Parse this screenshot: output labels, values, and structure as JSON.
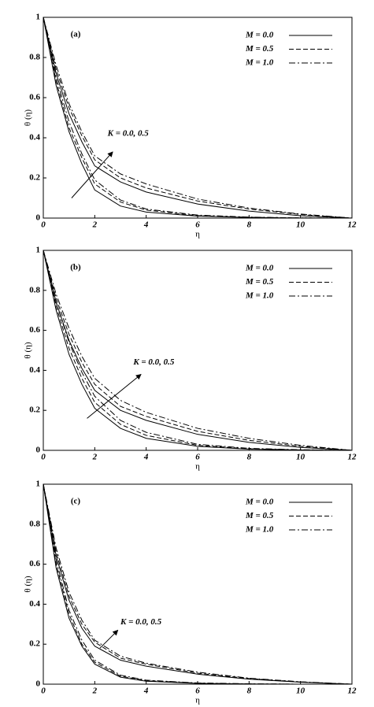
{
  "chart_data": [
    {
      "type": "line",
      "label": "(a)",
      "xlabel": "η",
      "ylabel": "θ (η)",
      "annotation": "K = 0.0, 0.5",
      "xlim": [
        0,
        12
      ],
      "ylim": [
        0,
        1
      ],
      "xticks": [
        0,
        2,
        4,
        6,
        8,
        10,
        12
      ],
      "yticks": [
        0,
        0.2,
        0.4,
        0.6,
        0.8,
        1
      ],
      "x": [
        0,
        0.5,
        1,
        1.5,
        2,
        3,
        4,
        6,
        8,
        10,
        12
      ],
      "series": [
        {
          "name": "M = 0.0",
          "color": "#000000",
          "dash": "solid",
          "lines": [
            {
              "values": [
                1,
                0.66,
                0.43,
                0.27,
                0.14,
                0.06,
                0.03,
                0.01,
                0.003,
                0,
                0
              ]
            },
            {
              "values": [
                1,
                0.72,
                0.52,
                0.38,
                0.26,
                0.18,
                0.13,
                0.07,
                0.035,
                0.012,
                0
              ]
            }
          ]
        },
        {
          "name": "M = 0.5",
          "color": "#000000",
          "dash": "dashed",
          "lines": [
            {
              "values": [
                1,
                0.68,
                0.45,
                0.3,
                0.17,
                0.08,
                0.04,
                0.012,
                0.004,
                0.001,
                0
              ]
            },
            {
              "values": [
                1,
                0.74,
                0.55,
                0.41,
                0.29,
                0.2,
                0.15,
                0.085,
                0.045,
                0.018,
                0
              ]
            }
          ]
        },
        {
          "name": "M = 1.0",
          "color": "#000000",
          "dash": "dashdot",
          "lines": [
            {
              "values": [
                1,
                0.7,
                0.48,
                0.32,
                0.19,
                0.09,
                0.045,
                0.015,
                0.005,
                0.001,
                0
              ]
            },
            {
              "values": [
                1,
                0.76,
                0.57,
                0.43,
                0.31,
                0.22,
                0.17,
                0.095,
                0.05,
                0.02,
                0
              ]
            }
          ]
        }
      ]
    },
    {
      "type": "line",
      "label": "(b)",
      "xlabel": "η",
      "ylabel": "θ (η)",
      "annotation": "K = 0.0, 0.5",
      "xlim": [
        0,
        12
      ],
      "ylim": [
        0,
        1
      ],
      "xticks": [
        0,
        2,
        4,
        6,
        8,
        10,
        12
      ],
      "yticks": [
        0,
        0.2,
        0.4,
        0.6,
        0.8,
        1
      ],
      "x": [
        0,
        0.5,
        1,
        1.5,
        2,
        3,
        4,
        6,
        8,
        10,
        12
      ],
      "series": [
        {
          "name": "M = 0.0",
          "color": "#000000",
          "dash": "solid",
          "lines": [
            {
              "values": [
                1,
                0.7,
                0.48,
                0.33,
                0.21,
                0.11,
                0.06,
                0.02,
                0.006,
                0.002,
                0
              ]
            },
            {
              "values": [
                1,
                0.74,
                0.55,
                0.41,
                0.3,
                0.2,
                0.15,
                0.08,
                0.04,
                0.015,
                0
              ]
            }
          ]
        },
        {
          "name": "M = 0.5",
          "color": "#000000",
          "dash": "dashed",
          "lines": [
            {
              "values": [
                1,
                0.72,
                0.51,
                0.36,
                0.24,
                0.13,
                0.075,
                0.025,
                0.008,
                0.002,
                0
              ]
            },
            {
              "values": [
                1,
                0.76,
                0.58,
                0.44,
                0.33,
                0.22,
                0.17,
                0.095,
                0.05,
                0.02,
                0
              ]
            }
          ]
        },
        {
          "name": "M = 1.0",
          "color": "#000000",
          "dash": "dashdot",
          "lines": [
            {
              "values": [
                1,
                0.74,
                0.54,
                0.39,
                0.27,
                0.15,
                0.09,
                0.03,
                0.01,
                0.003,
                0
              ]
            },
            {
              "values": [
                1,
                0.78,
                0.61,
                0.47,
                0.36,
                0.25,
                0.19,
                0.11,
                0.06,
                0.025,
                0
              ]
            }
          ]
        }
      ]
    },
    {
      "type": "line",
      "label": "(c)",
      "xlabel": "η",
      "ylabel": "θ (η)",
      "annotation": "K = 0.0, 0.5",
      "xlim": [
        0,
        12
      ],
      "ylim": [
        0,
        1
      ],
      "xticks": [
        0,
        2,
        4,
        6,
        8,
        10,
        12
      ],
      "yticks": [
        0,
        0.2,
        0.4,
        0.6,
        0.8,
        1
      ],
      "x": [
        0,
        0.5,
        1,
        1.5,
        2,
        3,
        4,
        6,
        8,
        10,
        12
      ],
      "series": [
        {
          "name": "M = 0.0",
          "color": "#000000",
          "dash": "solid",
          "lines": [
            {
              "values": [
                1,
                0.58,
                0.33,
                0.19,
                0.1,
                0.035,
                0.015,
                0.004,
                0.001,
                0,
                0
              ]
            },
            {
              "values": [
                1,
                0.64,
                0.42,
                0.28,
                0.19,
                0.12,
                0.09,
                0.05,
                0.025,
                0.01,
                0
              ]
            }
          ]
        },
        {
          "name": "M = 0.5",
          "color": "#000000",
          "dash": "dashed",
          "lines": [
            {
              "values": [
                1,
                0.6,
                0.35,
                0.2,
                0.11,
                0.04,
                0.018,
                0.005,
                0.001,
                0,
                0
              ]
            },
            {
              "values": [
                1,
                0.66,
                0.44,
                0.3,
                0.21,
                0.13,
                0.1,
                0.055,
                0.028,
                0.011,
                0
              ]
            }
          ]
        },
        {
          "name": "M = 1.0",
          "color": "#000000",
          "dash": "dashdot",
          "lines": [
            {
              "values": [
                1,
                0.62,
                0.37,
                0.22,
                0.12,
                0.045,
                0.02,
                0.006,
                0.002,
                0,
                0
              ]
            },
            {
              "values": [
                1,
                0.68,
                0.46,
                0.32,
                0.22,
                0.14,
                0.105,
                0.06,
                0.03,
                0.012,
                0
              ]
            }
          ]
        }
      ]
    }
  ]
}
